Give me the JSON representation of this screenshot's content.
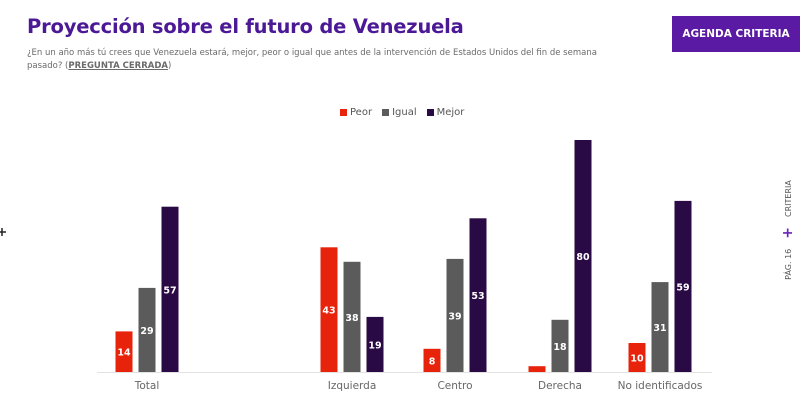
{
  "header": {
    "title": "Proyección sobre el futuro de Venezuela",
    "subtitle": "¿En un año más tú crees que Venezuela estará, mejor, peor o igual que antes de la intervención de Estados Unidos del fin de semana pasado? (",
    "subtitle_link": "PREGUNTA CERRADA",
    "subtitle_end": ")",
    "button_label": "AGENDA CRITERIA"
  },
  "side": {
    "page_label": "PÁG. 16",
    "brand_label": "CRITERIA"
  },
  "chart_data": {
    "type": "bar",
    "title": "Proyección sobre el futuro de Venezuela",
    "xlabel": "",
    "ylabel": "",
    "ylim": [
      0,
      80
    ],
    "grid": false,
    "legend_position": "top-center",
    "categories": [
      "Total",
      "Izquierda",
      "Centro",
      "Derecha",
      "No identificados"
    ],
    "series": [
      {
        "name": "Peor",
        "color": "#e8230c",
        "values": [
          14,
          43,
          8,
          2,
          10
        ]
      },
      {
        "name": "Igual",
        "color": "#5b5b5b",
        "values": [
          29,
          38,
          39,
          18,
          31
        ]
      },
      {
        "name": "Mejor",
        "color": "#2a0a45",
        "values": [
          57,
          19,
          53,
          80,
          59
        ]
      }
    ]
  }
}
